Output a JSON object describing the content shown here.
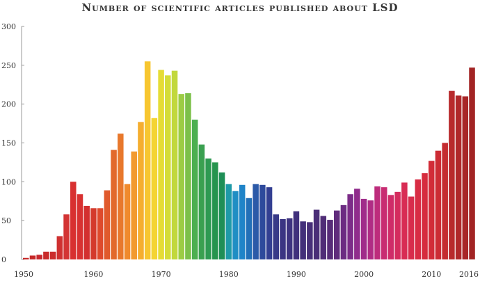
{
  "chart_data": {
    "type": "bar",
    "title": "Number of scientific articles published about LSD",
    "xlabel": "",
    "ylabel": "",
    "ylim": [
      0,
      300
    ],
    "y_ticks": [
      0,
      50,
      100,
      150,
      200,
      250,
      300
    ],
    "x_ticks": [
      1950,
      1960,
      1970,
      1980,
      1990,
      2000,
      2010,
      2016
    ],
    "grid": false,
    "legend": "none",
    "x": [
      1950,
      1951,
      1952,
      1953,
      1954,
      1955,
      1956,
      1957,
      1958,
      1959,
      1960,
      1961,
      1962,
      1963,
      1964,
      1965,
      1966,
      1967,
      1968,
      1969,
      1970,
      1971,
      1972,
      1973,
      1974,
      1975,
      1976,
      1977,
      1978,
      1979,
      1980,
      1981,
      1982,
      1983,
      1984,
      1985,
      1986,
      1987,
      1988,
      1989,
      1990,
      1991,
      1992,
      1993,
      1994,
      1995,
      1996,
      1997,
      1998,
      1999,
      2000,
      2001,
      2002,
      2003,
      2004,
      2005,
      2006,
      2007,
      2008,
      2009,
      2010,
      2011,
      2012,
      2013,
      2014,
      2015,
      2016
    ],
    "values": [
      2,
      5,
      6,
      10,
      10,
      30,
      58,
      100,
      84,
      69,
      66,
      66,
      89,
      141,
      162,
      97,
      139,
      177,
      255,
      182,
      244,
      237,
      243,
      213,
      214,
      180,
      148,
      130,
      125,
      112,
      97,
      88,
      96,
      79,
      97,
      96,
      93,
      58,
      52,
      53,
      62,
      49,
      48,
      64,
      56,
      51,
      63,
      70,
      84,
      91,
      78,
      76,
      94,
      93,
      83,
      87,
      99,
      81,
      103,
      111,
      127,
      140,
      150,
      217,
      211,
      210,
      247
    ],
    "colors": [
      "#c62828",
      "#c62828",
      "#c8282e",
      "#c92b2b",
      "#cb2d2d",
      "#cf3030",
      "#d33434",
      "#d83030",
      "#d83131",
      "#d32f2f",
      "#d43a2c",
      "#de4a2c",
      "#e05a2c",
      "#e26a2c",
      "#e8782c",
      "#f08a2c",
      "#f29a2e",
      "#f5ae2f",
      "#f7c630",
      "#f4d432",
      "#e5dc35",
      "#d4dc38",
      "#c2d83c",
      "#9ccc44",
      "#7cc04a",
      "#4caf50",
      "#3aa050",
      "#2e9a52",
      "#26944e",
      "#1f8f56",
      "#1e9aa8",
      "#1f8ec4",
      "#1f84c8",
      "#2270b8",
      "#2c5aa8",
      "#2e4a9c",
      "#333f92",
      "#383a88",
      "#3b3583",
      "#3e3380",
      "#40307c",
      "#43307a",
      "#472f78",
      "#4a2e77",
      "#502d77",
      "#572c78",
      "#602c7c",
      "#6c2c82",
      "#7c2c88",
      "#902c8c",
      "#a02c8a",
      "#b02c84",
      "#bd2c7c",
      "#c82c72",
      "#cf2c68",
      "#d42c5e",
      "#d82c54",
      "#d82c4c",
      "#d82c44",
      "#d62c3e",
      "#d22c38",
      "#cc2c34",
      "#c42c30",
      "#b82a2c",
      "#b0282a",
      "#a82628",
      "#a22424"
    ]
  }
}
